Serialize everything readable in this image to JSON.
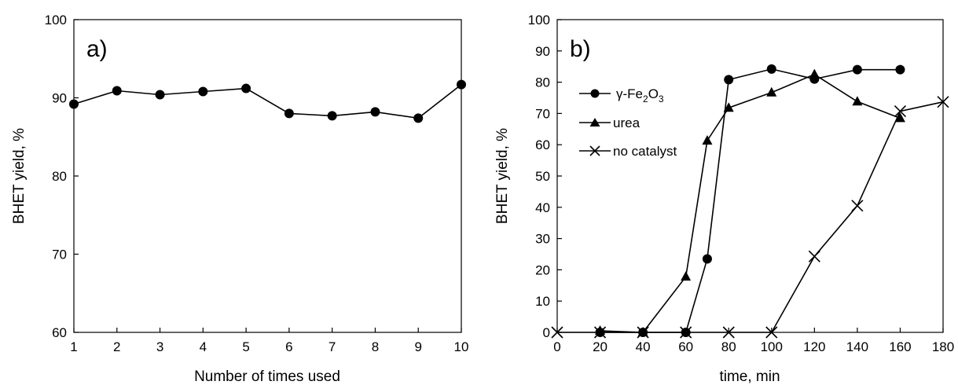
{
  "chart_data": [
    {
      "type": "line",
      "panel_label": "a)",
      "xlabel": "Number of times used",
      "ylabel": "BHET yield, %",
      "xlim": [
        1,
        10
      ],
      "ylim": [
        60,
        100
      ],
      "x_ticks": [
        "1",
        "2",
        "3",
        "4",
        "5",
        "6",
        "7",
        "8",
        "9",
        "10"
      ],
      "y_ticks": [
        "60",
        "70",
        "80",
        "90",
        "100"
      ],
      "grid": false,
      "series": [
        {
          "marker": "circle",
          "x": [
            1,
            2,
            3,
            4,
            5,
            6,
            7,
            8,
            9,
            10
          ],
          "values": [
            89.2,
            90.9,
            90.4,
            90.8,
            91.2,
            88.0,
            87.7,
            88.2,
            87.4,
            91.7
          ]
        }
      ]
    },
    {
      "type": "line",
      "panel_label": "b)",
      "xlabel": "time, min",
      "ylabel": "BHET yield, %",
      "xlim": [
        0,
        180
      ],
      "ylim": [
        0,
        100
      ],
      "x_ticks": [
        "0",
        "20",
        "40",
        "60",
        "80",
        "100",
        "120",
        "140",
        "160",
        "180"
      ],
      "y_ticks": [
        "0",
        "10",
        "20",
        "30",
        "40",
        "50",
        "60",
        "70",
        "80",
        "90",
        "100"
      ],
      "grid": false,
      "legend_position": "left",
      "series": [
        {
          "name_prefix": "γ-Fe",
          "name_sub1": "2",
          "name_mid": "O",
          "name_sub2": "3",
          "marker": "circle",
          "x": [
            20,
            40,
            60,
            70,
            80,
            100,
            120,
            140,
            160
          ],
          "values": [
            0,
            0,
            0,
            23.5,
            80.8,
            84.2,
            81.0,
            84.0,
            84.0
          ]
        },
        {
          "name": "urea",
          "marker": "triangle",
          "x": [
            20,
            40,
            60,
            70,
            80,
            100,
            120,
            140,
            160
          ],
          "values": [
            0.5,
            0,
            17.8,
            61.3,
            71.8,
            76.7,
            82.5,
            73.8,
            68.5
          ]
        },
        {
          "name": "no catalyst",
          "marker": "x",
          "x": [
            0,
            20,
            40,
            60,
            80,
            100,
            120,
            140,
            160,
            180
          ],
          "values": [
            0,
            0,
            0,
            0,
            0,
            0,
            24.3,
            40.5,
            70.7,
            73.7
          ]
        }
      ]
    }
  ]
}
